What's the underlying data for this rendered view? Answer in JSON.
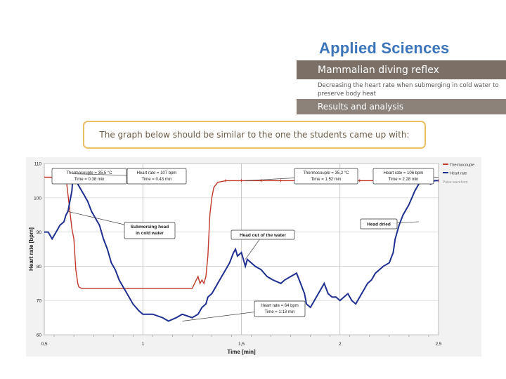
{
  "header": {
    "brand": "Applied Sciences",
    "title": "Mammalian diving reflex",
    "subtitle": "Decreasing the heart rate when submerging in cold water to preserve body heat",
    "section": "Results and analysis",
    "callout": "The graph below should be similar to the one the students came up with:"
  },
  "chart_data": {
    "type": "line",
    "xlabel": "Time [min]",
    "ylabel": "Heart rate [bpm]",
    "xlim": [
      0.5,
      2.5
    ],
    "ylim": [
      60,
      110
    ],
    "x_ticks": [
      0.5,
      1,
      1.5,
      2,
      2.5
    ],
    "x_tick_labels": [
      "0,5",
      "1",
      "1,5",
      "2",
      "2,5"
    ],
    "y_ticks": [
      60,
      70,
      80,
      90,
      100,
      110
    ],
    "grid": true,
    "legend_position": "right",
    "legend_extra": "Pulse waveform",
    "series": [
      {
        "name": "Thermocouple",
        "color": "#c0392b",
        "x": [
          0.5,
          0.61,
          0.62,
          0.64,
          0.65,
          0.66,
          0.67,
          0.675,
          0.69,
          0.72,
          0.74,
          0.78,
          0.82,
          0.86,
          0.9,
          0.95,
          1.0,
          1.05,
          1.1,
          1.15,
          1.2,
          1.25,
          1.28,
          1.29,
          1.3,
          1.31,
          1.32,
          1.33,
          1.34,
          1.35,
          1.36,
          1.38,
          1.42,
          1.5,
          1.6,
          1.7,
          1.8,
          1.9,
          2.0,
          2.1,
          2.2,
          2.3,
          2.4,
          2.5
        ],
        "y": [
          106,
          106,
          101,
          91,
          88,
          79,
          75,
          74,
          73.5,
          73.5,
          73.5,
          73.5,
          73.5,
          73.5,
          73.5,
          73.5,
          73.5,
          73.5,
          73.5,
          73.5,
          73.5,
          73.5,
          77,
          75,
          76,
          75,
          77,
          83,
          95,
          100,
          103,
          104.5,
          105,
          105,
          105,
          105,
          105,
          105,
          105,
          105,
          105,
          105,
          105,
          105
        ]
      },
      {
        "name": "Heart rate",
        "color": "#1f2f8f",
        "x": [
          0.5,
          0.52,
          0.54,
          0.55,
          0.57,
          0.58,
          0.6,
          0.61,
          0.62,
          0.63,
          0.64,
          0.645,
          0.65,
          0.66,
          0.67,
          0.68,
          0.7,
          0.72,
          0.74,
          0.76,
          0.78,
          0.8,
          0.82,
          0.84,
          0.86,
          0.88,
          0.9,
          0.92,
          0.95,
          0.98,
          1.0,
          1.05,
          1.1,
          1.13,
          1.17,
          1.2,
          1.25,
          1.28,
          1.3,
          1.32,
          1.33,
          1.35,
          1.37,
          1.38,
          1.4,
          1.42,
          1.44,
          1.46,
          1.47,
          1.48,
          1.5,
          1.52,
          1.53,
          1.55,
          1.57,
          1.6,
          1.63,
          1.66,
          1.7,
          1.72,
          1.75,
          1.78,
          1.8,
          1.82,
          1.83,
          1.85,
          1.87,
          1.9,
          1.92,
          1.94,
          1.96,
          1.98,
          2.0,
          2.02,
          2.04,
          2.06,
          2.08,
          2.1,
          2.12,
          2.14,
          2.16,
          2.18,
          2.2,
          2.22,
          2.25,
          2.27,
          2.28,
          2.3,
          2.32,
          2.35,
          2.38,
          2.4,
          2.42,
          2.44,
          2.46,
          2.48,
          2.5
        ],
        "y": [
          90,
          90,
          88,
          89,
          91,
          92,
          93,
          95,
          96,
          99,
          102,
          106,
          107,
          106,
          104,
          103,
          101,
          99,
          96,
          94,
          92,
          88,
          85,
          81,
          79,
          76,
          74,
          72,
          69,
          67,
          66,
          66,
          65,
          64,
          65,
          66,
          65,
          66,
          68,
          69,
          71,
          72,
          74,
          75,
          77,
          79,
          81,
          84,
          85,
          83,
          84,
          80,
          82,
          81,
          80,
          79,
          77,
          76,
          75,
          76,
          77,
          78,
          75,
          72,
          69,
          68,
          70,
          73,
          75,
          72,
          71,
          71,
          70,
          71,
          72,
          70,
          69,
          71,
          73,
          75,
          76,
          78,
          79,
          80,
          81,
          84,
          88,
          92,
          95,
          98,
          102,
          104,
          106,
          105,
          104,
          105,
          105
        ]
      }
    ],
    "annotations": [
      {
        "text": "Thermocouple = 35,5 °C\nTime = 0.38 min",
        "x": 0.65,
        "y": 106
      },
      {
        "text": "Heart rate = 107 bpm\nTime = 0.43 min",
        "x": 0.645,
        "y": 107
      },
      {
        "text": "Submersing head\nin cold water",
        "x": 0.67,
        "y": 93
      },
      {
        "text": "Thermocouple = 35,2 °C\nTime = 1.52 min",
        "x": 1.52,
        "y": 105
      },
      {
        "text": "Heart rate = 106 bpm\nTime = 2.28 min",
        "x": 2.45,
        "y": 106
      },
      {
        "text": "Head out of the water",
        "x": 1.5,
        "y": 84
      },
      {
        "text": "Head dried",
        "x": 2.35,
        "y": 95
      },
      {
        "text": "Heart rate = 64 bpm\nTime = 1:13 min",
        "x": 1.25,
        "y": 64
      }
    ]
  }
}
